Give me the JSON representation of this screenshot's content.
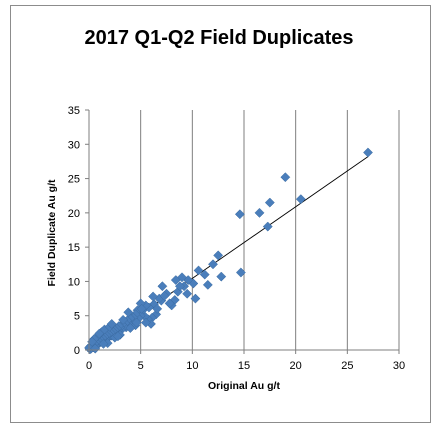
{
  "chart_data": {
    "type": "scatter",
    "title": "2017 Q1-Q2 Field Duplicates",
    "xlabel": "Original Au g/t",
    "ylabel": "Field Duplicate Au g/t",
    "xlim": [
      0,
      30
    ],
    "ylim": [
      0,
      35
    ],
    "xticks": [
      "0",
      "5",
      "10",
      "15",
      "20",
      "25",
      "30"
    ],
    "yticks": [
      "0",
      "5",
      "10",
      "15",
      "20",
      "25",
      "30",
      "35"
    ],
    "grid": "vertical",
    "legend": "none",
    "marker_color": "#4a7ebb",
    "trendline": {
      "x": [
        0,
        27
      ],
      "y": [
        0,
        28.2
      ]
    },
    "series": [
      {
        "marker": "diamond",
        "points": [
          [
            27.0,
            28.8
          ],
          [
            20.5,
            22.0
          ],
          [
            19.0,
            25.2
          ],
          [
            17.5,
            21.5
          ],
          [
            17.3,
            18.0
          ],
          [
            16.5,
            20.0
          ],
          [
            14.6,
            19.8
          ],
          [
            14.7,
            11.3
          ],
          [
            12.5,
            13.8
          ],
          [
            12.8,
            10.7
          ],
          [
            12.0,
            12.5
          ],
          [
            11.2,
            11.0
          ],
          [
            10.6,
            11.6
          ],
          [
            11.5,
            9.5
          ],
          [
            10.3,
            7.5
          ],
          [
            10.1,
            9.7
          ],
          [
            9.6,
            10.2
          ],
          [
            9.2,
            9.3
          ],
          [
            9.0,
            10.6
          ],
          [
            8.6,
            8.5
          ],
          [
            8.3,
            7.3
          ],
          [
            8.0,
            6.5
          ],
          [
            8.4,
            10.2
          ],
          [
            9.5,
            8.2
          ],
          [
            7.8,
            6.8
          ],
          [
            7.5,
            8.2
          ],
          [
            7.0,
            7.2
          ],
          [
            7.1,
            9.3
          ],
          [
            6.8,
            7.5
          ],
          [
            6.5,
            5.2
          ],
          [
            6.3,
            6.7
          ],
          [
            6.1,
            4.7
          ],
          [
            6.0,
            3.8
          ],
          [
            5.8,
            6.2
          ],
          [
            5.7,
            4.5
          ],
          [
            5.5,
            6.5
          ],
          [
            5.4,
            4.9
          ],
          [
            5.2,
            5.8
          ],
          [
            5.0,
            6.8
          ],
          [
            5.0,
            5.0
          ],
          [
            4.8,
            4.6
          ],
          [
            4.7,
            5.8
          ],
          [
            4.5,
            5.2
          ],
          [
            4.3,
            4.7
          ],
          [
            4.2,
            4.2
          ],
          [
            4.0,
            4.6
          ],
          [
            3.9,
            3.7
          ],
          [
            3.7,
            4.3
          ],
          [
            3.6,
            3.3
          ],
          [
            3.5,
            3.9
          ],
          [
            3.4,
            3.4
          ],
          [
            3.2,
            3.7
          ],
          [
            3.1,
            2.9
          ],
          [
            3.0,
            3.3
          ],
          [
            2.9,
            3.5
          ],
          [
            2.8,
            2.8
          ],
          [
            2.7,
            3.1
          ],
          [
            2.6,
            2.5
          ],
          [
            2.5,
            2.9
          ],
          [
            2.4,
            2.4
          ],
          [
            2.3,
            2.7
          ],
          [
            2.2,
            2.1
          ],
          [
            2.1,
            2.5
          ],
          [
            2.0,
            2.0
          ],
          [
            1.9,
            2.3
          ],
          [
            1.8,
            1.8
          ],
          [
            1.7,
            2.1
          ],
          [
            1.6,
            1.6
          ],
          [
            1.5,
            1.9
          ],
          [
            1.4,
            1.4
          ],
          [
            1.3,
            1.7
          ],
          [
            1.2,
            1.2
          ],
          [
            1.1,
            1.5
          ],
          [
            1.0,
            1.0
          ],
          [
            0.9,
            1.3
          ],
          [
            0.8,
            0.8
          ],
          [
            0.7,
            1.1
          ],
          [
            0.6,
            0.6
          ],
          [
            0.5,
            0.9
          ],
          [
            0.4,
            0.4
          ],
          [
            0.3,
            0.7
          ],
          [
            0.2,
            0.2
          ],
          [
            0.1,
            0.5
          ],
          [
            0.1,
            0.1
          ],
          [
            0.0,
            0.3
          ],
          [
            1.2,
            2.6
          ],
          [
            1.5,
            3.0
          ],
          [
            2.0,
            3.4
          ],
          [
            0.8,
            2.0
          ],
          [
            1.0,
            2.4
          ],
          [
            3.0,
            2.2
          ],
          [
            2.5,
            1.8
          ],
          [
            1.8,
            1.0
          ],
          [
            4.5,
            3.6
          ],
          [
            4.0,
            3.2
          ],
          [
            5.5,
            4.0
          ],
          [
            6.2,
            7.8
          ],
          [
            3.8,
            5.5
          ],
          [
            2.2,
            3.8
          ],
          [
            0.5,
            1.6
          ],
          [
            0.3,
            1.2
          ],
          [
            0.6,
            0.2
          ],
          [
            1.4,
            0.9
          ],
          [
            2.8,
            2.0
          ],
          [
            3.3,
            4.4
          ],
          [
            4.6,
            4.0
          ],
          [
            5.1,
            6.0
          ],
          [
            6.6,
            6.0
          ],
          [
            7.3,
            7.9
          ],
          [
            8.8,
            9.3
          ]
        ]
      }
    ]
  }
}
